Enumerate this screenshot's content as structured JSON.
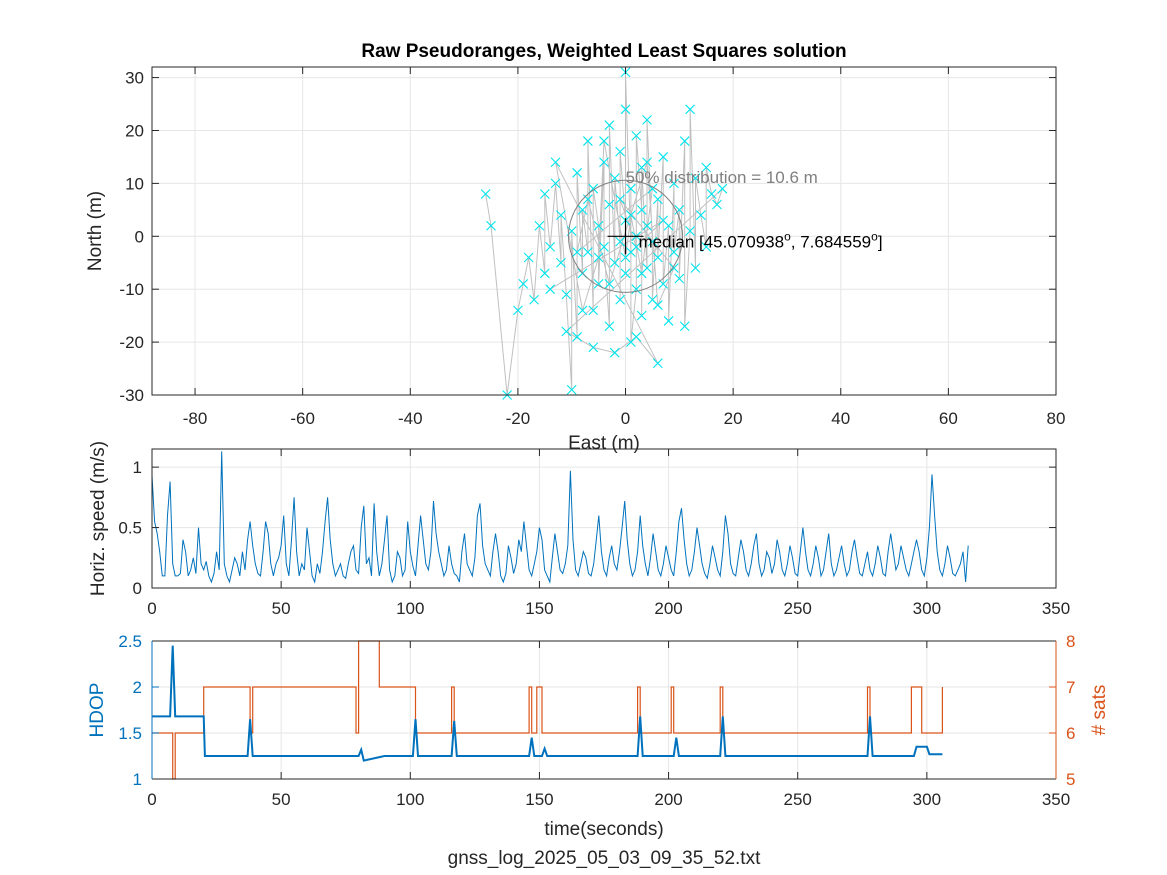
{
  "figure": {
    "footer_label": "gnss_log_2025_05_03_09_35_52.txt"
  },
  "colors": {
    "scatter": "#00e5ee",
    "track": "#c0c0c0",
    "speed": "#0072bd",
    "hdop": "#0072bd",
    "sats": "#d95319",
    "circle": "#808080",
    "grid": "#e6e6e6",
    "axis": "#262626"
  },
  "chart_data": [
    {
      "id": "position",
      "type": "scatter",
      "title": "Raw Pseudoranges, Weighted Least Squares solution",
      "xlabel": "East (m)",
      "ylabel": "North (m)",
      "xlim": [
        -88,
        80
      ],
      "ylim": [
        -30,
        32
      ],
      "xticks": [
        -80,
        -60,
        -40,
        -20,
        0,
        20,
        40,
        60,
        80
      ],
      "yticks": [
        -30,
        -20,
        -10,
        0,
        10,
        20,
        30
      ],
      "grid": true,
      "marker": "x",
      "connected_track": true,
      "distribution_circle": {
        "center": [
          0,
          0
        ],
        "radius_m": 10.6,
        "label": "50% distribution = 10.6 m"
      },
      "median": {
        "label": "median",
        "coords": "[45.070938°, 7.684559°]",
        "lat": "45.070938",
        "lon": "7.684559"
      },
      "points": [
        [
          -26,
          8
        ],
        [
          -25,
          2
        ],
        [
          -22,
          -30
        ],
        [
          -20,
          -14
        ],
        [
          -19,
          -9
        ],
        [
          -18,
          -4
        ],
        [
          -17,
          -12
        ],
        [
          -16,
          2
        ],
        [
          -15,
          -7
        ],
        [
          -15,
          8
        ],
        [
          -14,
          -2
        ],
        [
          -13,
          10
        ],
        [
          -12,
          -5
        ],
        [
          -12,
          4
        ],
        [
          -11,
          -11
        ],
        [
          -10,
          -29
        ],
        [
          -10,
          1
        ],
        [
          -9,
          -19
        ],
        [
          -9,
          12
        ],
        [
          -8,
          -7
        ],
        [
          -8,
          5
        ],
        [
          -7,
          -3
        ],
        [
          -7,
          18
        ],
        [
          -6,
          -14
        ],
        [
          -6,
          9
        ],
        [
          -5,
          2
        ],
        [
          -5,
          -9
        ],
        [
          -4,
          14
        ],
        [
          -4,
          -2
        ],
        [
          -3,
          -17
        ],
        [
          -3,
          6
        ],
        [
          -3,
          21
        ],
        [
          -2,
          -5
        ],
        [
          -2,
          11
        ],
        [
          -1,
          -1
        ],
        [
          -1,
          -12
        ],
        [
          -1,
          16
        ],
        [
          0,
          3
        ],
        [
          0,
          -7
        ],
        [
          0,
          24
        ],
        [
          0,
          31
        ],
        [
          1,
          -3
        ],
        [
          1,
          9
        ],
        [
          1,
          -20
        ],
        [
          2,
          -10
        ],
        [
          2,
          0
        ],
        [
          2,
          19
        ],
        [
          3,
          5
        ],
        [
          3,
          -15
        ],
        [
          3,
          13
        ],
        [
          4,
          -6
        ],
        [
          4,
          2
        ],
        [
          4,
          22
        ],
        [
          5,
          -1
        ],
        [
          5,
          -12
        ],
        [
          6,
          7
        ],
        [
          6,
          -4
        ],
        [
          7,
          15
        ],
        [
          7,
          -9
        ],
        [
          8,
          2
        ],
        [
          8,
          -16
        ],
        [
          9,
          10
        ],
        [
          9,
          -3
        ],
        [
          10,
          5
        ],
        [
          10,
          -8
        ],
        [
          11,
          18
        ],
        [
          11,
          -17
        ],
        [
          12,
          1
        ],
        [
          12,
          24
        ],
        [
          13,
          -6
        ],
        [
          13,
          11
        ],
        [
          14,
          4
        ],
        [
          15,
          -2
        ],
        [
          15,
          13
        ],
        [
          16,
          8
        ],
        [
          17,
          6
        ],
        [
          18,
          9
        ],
        [
          -11,
          -18
        ],
        [
          -6,
          -21
        ],
        [
          -2,
          -22
        ],
        [
          2,
          -19
        ],
        [
          6,
          -24
        ],
        [
          -13,
          14
        ],
        [
          -8,
          -14
        ],
        [
          -5,
          -4
        ],
        [
          -4,
          18
        ],
        [
          0,
          -4
        ],
        [
          1,
          4
        ],
        [
          3,
          -7
        ],
        [
          5,
          9
        ],
        [
          -9,
          -3
        ],
        [
          -7,
          7
        ],
        [
          -3,
          -9
        ],
        [
          4,
          14
        ],
        [
          6,
          -13
        ],
        [
          9,
          -6
        ],
        [
          -1,
          7
        ],
        [
          2,
          -2
        ],
        [
          7,
          3
        ],
        [
          -14,
          -10
        ]
      ]
    },
    {
      "id": "speed",
      "type": "line",
      "xlabel": "",
      "ylabel": "Horiz. speed (m/s)",
      "xlim": [
        0,
        350
      ],
      "ylim": [
        0,
        1.15
      ],
      "xticks": [
        0,
        50,
        100,
        150,
        200,
        250,
        300,
        350
      ],
      "yticks": [
        0,
        0.5,
        1
      ],
      "ytick_labels": [
        "0",
        "0.5",
        "1"
      ],
      "grid": true,
      "t_start": 0,
      "t_step": 1,
      "values": [
        0.93,
        0.55,
        0.45,
        0.3,
        0.1,
        0.1,
        0.6,
        0.88,
        0.2,
        0.1,
        0.1,
        0.12,
        0.4,
        0.3,
        0.1,
        0.15,
        0.25,
        0.12,
        0.5,
        0.2,
        0.15,
        0.22,
        0.1,
        0.05,
        0.12,
        0.3,
        0.15,
        1.13,
        0.2,
        0.1,
        0.05,
        0.15,
        0.25,
        0.2,
        0.1,
        0.3,
        0.15,
        0.4,
        0.55,
        0.35,
        0.2,
        0.12,
        0.1,
        0.3,
        0.55,
        0.45,
        0.2,
        0.1,
        0.2,
        0.25,
        0.35,
        0.6,
        0.2,
        0.1,
        0.4,
        0.75,
        0.3,
        0.1,
        0.2,
        0.15,
        0.5,
        0.3,
        0.1,
        0.05,
        0.2,
        0.12,
        0.3,
        0.55,
        0.75,
        0.4,
        0.2,
        0.1,
        0.15,
        0.2,
        0.1,
        0.08,
        0.2,
        0.3,
        0.35,
        0.15,
        0.12,
        0.5,
        0.68,
        0.2,
        0.25,
        0.1,
        0.7,
        0.3,
        0.1,
        0.2,
        0.4,
        0.6,
        0.15,
        0.05,
        0.1,
        0.3,
        0.25,
        0.1,
        0.15,
        0.55,
        0.3,
        0.18,
        0.1,
        0.35,
        0.6,
        0.4,
        0.2,
        0.15,
        0.3,
        0.72,
        0.45,
        0.3,
        0.2,
        0.1,
        0.15,
        0.35,
        0.2,
        0.12,
        0.1,
        0.05,
        0.3,
        0.45,
        0.2,
        0.15,
        0.1,
        0.25,
        0.6,
        0.7,
        0.35,
        0.2,
        0.15,
        0.1,
        0.3,
        0.45,
        0.3,
        0.1,
        0.05,
        0.12,
        0.35,
        0.25,
        0.12,
        0.2,
        0.4,
        0.3,
        0.55,
        0.35,
        0.15,
        0.1,
        0.2,
        0.3,
        0.5,
        0.4,
        0.15,
        0.1,
        0.05,
        0.25,
        0.45,
        0.3,
        0.15,
        0.12,
        0.2,
        0.35,
        0.97,
        0.4,
        0.15,
        0.1,
        0.2,
        0.3,
        0.25,
        0.12,
        0.1,
        0.2,
        0.4,
        0.6,
        0.3,
        0.15,
        0.1,
        0.25,
        0.35,
        0.2,
        0.15,
        0.3,
        0.5,
        0.72,
        0.4,
        0.2,
        0.1,
        0.15,
        0.3,
        0.6,
        0.35,
        0.2,
        0.1,
        0.25,
        0.45,
        0.3,
        0.15,
        0.1,
        0.2,
        0.35,
        0.25,
        0.15,
        0.1,
        0.3,
        0.55,
        0.66,
        0.4,
        0.2,
        0.1,
        0.15,
        0.3,
        0.5,
        0.35,
        0.2,
        0.12,
        0.08,
        0.2,
        0.35,
        0.25,
        0.15,
        0.1,
        0.3,
        0.6,
        0.45,
        0.2,
        0.12,
        0.1,
        0.25,
        0.4,
        0.3,
        0.15,
        0.1,
        0.2,
        0.35,
        0.45,
        0.2,
        0.1,
        0.15,
        0.3,
        0.25,
        0.12,
        0.2,
        0.4,
        0.3,
        0.15,
        0.1,
        0.2,
        0.35,
        0.25,
        0.12,
        0.1,
        0.3,
        0.5,
        0.3,
        0.15,
        0.1,
        0.2,
        0.35,
        0.25,
        0.1,
        0.15,
        0.3,
        0.45,
        0.2,
        0.1,
        0.15,
        0.25,
        0.35,
        0.2,
        0.1,
        0.15,
        0.3,
        0.4,
        0.25,
        0.12,
        0.1,
        0.2,
        0.3,
        0.15,
        0.1,
        0.2,
        0.35,
        0.25,
        0.12,
        0.1,
        0.3,
        0.45,
        0.3,
        0.15,
        0.2,
        0.35,
        0.25,
        0.15,
        0.1,
        0.2,
        0.3,
        0.4,
        0.3,
        0.15,
        0.1,
        0.25,
        0.5,
        0.94,
        0.6,
        0.3,
        0.15,
        0.1,
        0.2,
        0.35,
        0.25,
        0.12,
        0.1,
        0.15,
        0.2,
        0.3,
        0.05,
        0.35
      ]
    },
    {
      "id": "dop_sats",
      "type": "line",
      "xlabel": "time(seconds)",
      "xlim": [
        0,
        350
      ],
      "xticks": [
        0,
        50,
        100,
        150,
        200,
        250,
        300,
        350
      ],
      "grid": true,
      "left_axis": {
        "label": "HDOP",
        "ylim": [
          1,
          2.5
        ],
        "yticks": [
          1,
          1.5,
          2,
          2.5
        ],
        "ytick_labels": [
          "1",
          "1.5",
          "2",
          "2.5"
        ]
      },
      "right_axis": {
        "label": "# sats",
        "ylim": [
          5,
          8
        ],
        "yticks": [
          5,
          6,
          7,
          8
        ],
        "ytick_labels": [
          "5",
          "6",
          "7",
          "8"
        ]
      },
      "series": [
        {
          "name": "HDOP",
          "axis": "left",
          "x": [
            0,
            7,
            8,
            9,
            10,
            20,
            20.5,
            37,
            38,
            39,
            80,
            81,
            82,
            90,
            101,
            102,
            103,
            116,
            117,
            118,
            146,
            147,
            148,
            151,
            152,
            153,
            188,
            189,
            190,
            202,
            203,
            204,
            220,
            221,
            222,
            277,
            278,
            279,
            295,
            296,
            298,
            300,
            301,
            306
          ],
          "y": [
            1.68,
            1.68,
            2.45,
            1.68,
            1.68,
            1.68,
            1.25,
            1.25,
            1.65,
            1.25,
            1.25,
            1.32,
            1.2,
            1.25,
            1.25,
            1.65,
            1.25,
            1.25,
            1.63,
            1.25,
            1.25,
            1.45,
            1.25,
            1.25,
            1.33,
            1.25,
            1.25,
            1.68,
            1.25,
            1.25,
            1.45,
            1.25,
            1.25,
            1.68,
            1.25,
            1.25,
            1.68,
            1.25,
            1.25,
            1.35,
            1.35,
            1.35,
            1.27,
            1.27
          ]
        },
        {
          "name": "# sats",
          "axis": "right",
          "step": true,
          "x": [
            0,
            8,
            9,
            20,
            38,
            39,
            78,
            79,
            80,
            88,
            101,
            102,
            116,
            117,
            146,
            147,
            149,
            150,
            151,
            188,
            189,
            201,
            202,
            220,
            221,
            277,
            278,
            294,
            296,
            298,
            306
          ],
          "y": [
            6,
            5,
            6,
            7,
            6,
            7,
            7,
            6,
            8,
            7,
            7,
            6,
            7,
            6,
            7,
            6,
            7,
            7,
            6,
            7,
            6,
            7,
            6,
            7,
            6,
            7,
            6,
            7,
            7,
            6,
            7
          ]
        }
      ]
    }
  ]
}
